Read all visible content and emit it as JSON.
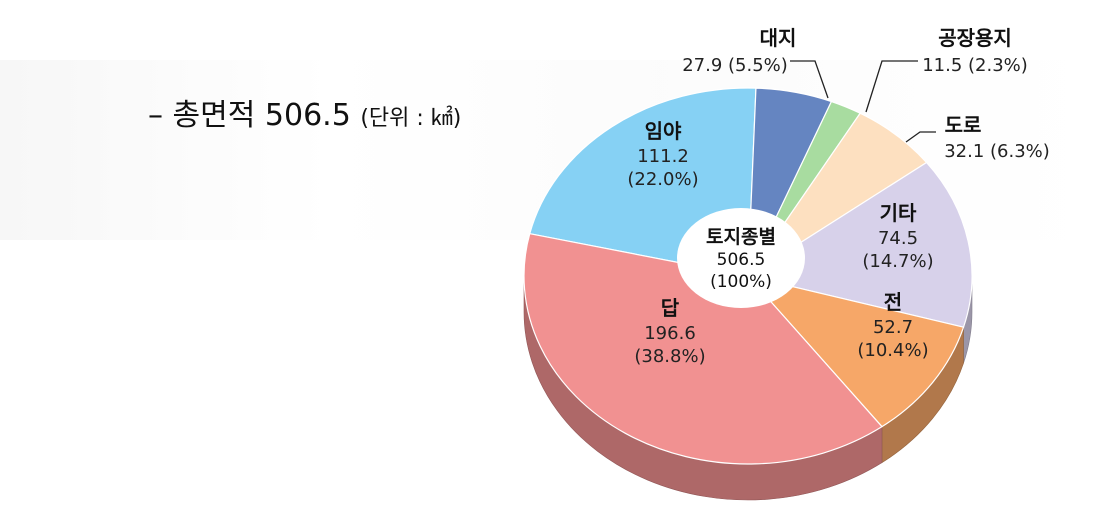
{
  "header": {
    "dash": "–",
    "total_label": "총면적",
    "total_value": "506.5",
    "unit": "(단위 : ㎢)"
  },
  "colors": {
    "임야": "#86d1f4",
    "대지": "#6585c1",
    "공장용지": "#a8dca0",
    "도로": "#fde0c0",
    "기타": "#d7d1ea",
    "전": "#f6a768",
    "답": "#f19191"
  },
  "chart_data": {
    "type": "pie",
    "center": {
      "name": "토지종별",
      "value": "506.5",
      "pct": "(100%)"
    },
    "slices": [
      {
        "name": "임야",
        "value": 111.2,
        "value_text": "111.2",
        "pct_text": "(22.0%)"
      },
      {
        "name": "대지",
        "value": 27.9,
        "value_text": "27.9",
        "pct_text": "(5.5%)"
      },
      {
        "name": "공장용지",
        "value": 11.5,
        "value_text": "11.5",
        "pct_text": "(2.3%)"
      },
      {
        "name": "도로",
        "value": 32.1,
        "value_text": "32.1",
        "pct_text": "(6.3%)"
      },
      {
        "name": "기타",
        "value": 74.5,
        "value_text": "74.5",
        "pct_text": "(14.7%)"
      },
      {
        "name": "전",
        "value": 52.7,
        "value_text": "52.7",
        "pct_text": "(10.4%)"
      },
      {
        "name": "답",
        "value": 196.6,
        "value_text": "196.6",
        "pct_text": "(38.8%)"
      }
    ]
  }
}
